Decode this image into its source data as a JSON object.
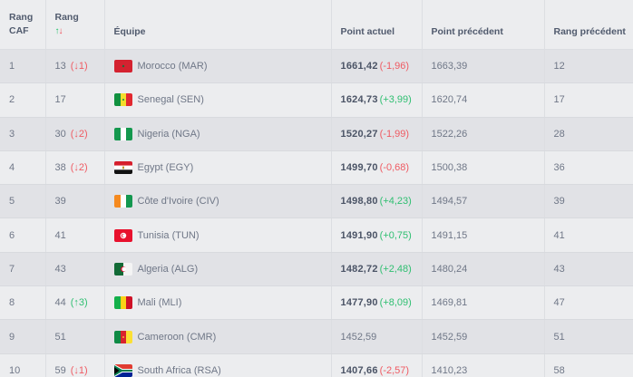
{
  "header": {
    "rank_caf": "Rang\nCAF",
    "rank_caf_line1": "Rang",
    "rank_caf_line2": "CAF",
    "rank_label": "Rang",
    "arrow_up": "🠅",
    "arrow_up_char": "↑",
    "arrow_down_char": "↓",
    "team": "Équipe",
    "current_points": "Point actuel",
    "previous_points": "Point précédent",
    "previous_rank": "Rang précédent"
  },
  "colors": {
    "up": "#2fbf71",
    "down": "#ef5b63",
    "row_odd": "#e1e2e6",
    "row_even": "#ecedef"
  },
  "rows": [
    {
      "caf_rank": "1",
      "world_rank": "13",
      "rank_delta": "(↓1)",
      "rank_dir": "down",
      "team": "Morocco (MAR)",
      "flag": "flag-morocco",
      "points": "1661,42",
      "points_delta": "(-1,96)",
      "points_dir": "down",
      "prev_points": "1663,39",
      "prev_rank": "12"
    },
    {
      "caf_rank": "2",
      "world_rank": "17",
      "rank_delta": "",
      "rank_dir": "none",
      "team": "Senegal (SEN)",
      "flag": "flag-senegal",
      "points": "1624,73",
      "points_delta": "(+3,99)",
      "points_dir": "up",
      "prev_points": "1620,74",
      "prev_rank": "17"
    },
    {
      "caf_rank": "3",
      "world_rank": "30",
      "rank_delta": "(↓2)",
      "rank_dir": "down",
      "team": "Nigeria (NGA)",
      "flag": "flag-nigeria",
      "points": "1520,27",
      "points_delta": "(-1,99)",
      "points_dir": "down",
      "prev_points": "1522,26",
      "prev_rank": "28"
    },
    {
      "caf_rank": "4",
      "world_rank": "38",
      "rank_delta": "(↓2)",
      "rank_dir": "down",
      "team": "Egypt (EGY)",
      "flag": "flag-egypt",
      "points": "1499,70",
      "points_delta": "(-0,68)",
      "points_dir": "down",
      "prev_points": "1500,38",
      "prev_rank": "36"
    },
    {
      "caf_rank": "5",
      "world_rank": "39",
      "rank_delta": "",
      "rank_dir": "none",
      "team": "Côte d'Ivoire (CIV)",
      "flag": "flag-cote-divoire",
      "points": "1498,80",
      "points_delta": "(+4,23)",
      "points_dir": "up",
      "prev_points": "1494,57",
      "prev_rank": "39"
    },
    {
      "caf_rank": "6",
      "world_rank": "41",
      "rank_delta": "",
      "rank_dir": "none",
      "team": "Tunisia (TUN)",
      "flag": "flag-tunisia",
      "points": "1491,90",
      "points_delta": "(+0,75)",
      "points_dir": "up",
      "prev_points": "1491,15",
      "prev_rank": "41"
    },
    {
      "caf_rank": "7",
      "world_rank": "43",
      "rank_delta": "",
      "rank_dir": "none",
      "team": "Algeria (ALG)",
      "flag": "flag-algeria",
      "points": "1482,72",
      "points_delta": "(+2,48)",
      "points_dir": "up",
      "prev_points": "1480,24",
      "prev_rank": "43"
    },
    {
      "caf_rank": "8",
      "world_rank": "44",
      "rank_delta": "(↑3)",
      "rank_dir": "up",
      "team": "Mali (MLI)",
      "flag": "flag-mali",
      "points": "1477,90",
      "points_delta": "(+8,09)",
      "points_dir": "up",
      "prev_points": "1469,81",
      "prev_rank": "47"
    },
    {
      "caf_rank": "9",
      "world_rank": "51",
      "rank_delta": "",
      "rank_dir": "none",
      "team": "Cameroon (CMR)",
      "flag": "flag-cameroon",
      "points": "1452,59",
      "points_delta": "",
      "points_dir": "none",
      "prev_points": "1452,59",
      "prev_rank": "51"
    },
    {
      "caf_rank": "10",
      "world_rank": "59",
      "rank_delta": "(↓1)",
      "rank_dir": "down",
      "team": "South Africa (RSA)",
      "flag": "flag-south-africa",
      "points": "1407,66",
      "points_delta": "(-2,57)",
      "points_dir": "down",
      "prev_points": "1410,23",
      "prev_rank": "58"
    }
  ]
}
